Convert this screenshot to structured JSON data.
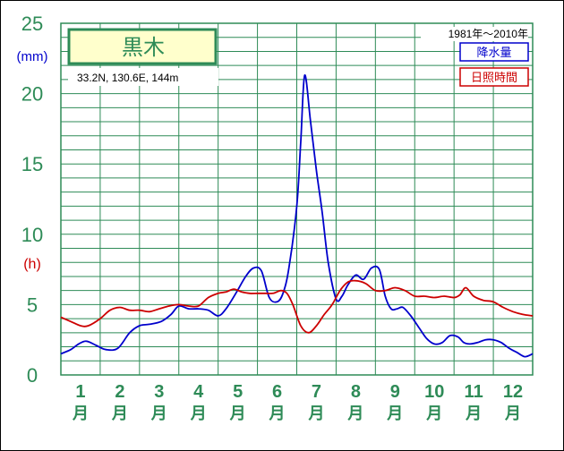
{
  "chart_data": {
    "type": "line",
    "title": "黒木",
    "location": "33.2N,  130.6E,  144m",
    "period": "1981年〜2010年",
    "y_ticks": [
      "0",
      "5",
      "10",
      "15",
      "20",
      "25"
    ],
    "y_unit_precip": "(mm)",
    "y_unit_sunshine": "(h)",
    "ylim": [
      0,
      25
    ],
    "month_suffix": "月",
    "categories": [
      "1",
      "2",
      "3",
      "4",
      "5",
      "6",
      "7",
      "8",
      "9",
      "10",
      "11",
      "12"
    ],
    "series": [
      {
        "name": "降水量",
        "color": "#0000cc",
        "x": [
          0.0,
          0.25,
          0.45,
          0.65,
          0.9,
          1.15,
          1.45,
          1.75,
          2.0,
          2.25,
          2.55,
          2.8,
          3.0,
          3.25,
          3.5,
          3.75,
          4.0,
          4.2,
          4.45,
          4.7,
          4.9,
          5.1,
          5.3,
          5.5,
          5.65,
          5.8,
          6.0,
          6.1,
          6.2,
          6.35,
          6.5,
          6.65,
          6.8,
          7.0,
          7.15,
          7.3,
          7.5,
          7.7,
          7.9,
          8.1,
          8.25,
          8.4,
          8.55,
          8.7,
          8.9,
          9.1,
          9.3,
          9.5,
          9.7,
          9.9,
          10.1,
          10.25,
          10.4,
          10.6,
          10.8,
          11.0,
          11.2,
          11.4,
          11.6,
          11.8,
          12.0
        ],
        "y": [
          1.5,
          1.8,
          2.2,
          2.4,
          2.1,
          1.8,
          1.9,
          3.0,
          3.5,
          3.6,
          3.8,
          4.3,
          4.9,
          4.7,
          4.7,
          4.6,
          4.2,
          4.7,
          5.8,
          7.0,
          7.6,
          7.4,
          5.5,
          5.2,
          5.8,
          7.6,
          12.0,
          16.5,
          21.3,
          18.0,
          14.5,
          11.5,
          8.0,
          5.4,
          5.6,
          6.4,
          7.1,
          6.8,
          7.6,
          7.5,
          5.6,
          4.7,
          4.7,
          4.8,
          4.2,
          3.4,
          2.6,
          2.2,
          2.3,
          2.8,
          2.7,
          2.3,
          2.2,
          2.3,
          2.5,
          2.5,
          2.3,
          1.9,
          1.6,
          1.3,
          1.5
        ]
      },
      {
        "name": "日照時間",
        "color": "#cc0000",
        "x": [
          0.0,
          0.25,
          0.5,
          0.7,
          1.0,
          1.25,
          1.5,
          1.75,
          2.0,
          2.25,
          2.5,
          2.75,
          3.0,
          3.25,
          3.5,
          3.75,
          4.0,
          4.2,
          4.4,
          4.6,
          4.8,
          5.0,
          5.2,
          5.4,
          5.6,
          5.75,
          5.9,
          6.1,
          6.3,
          6.5,
          6.7,
          6.9,
          7.1,
          7.3,
          7.5,
          7.75,
          8.0,
          8.25,
          8.5,
          8.75,
          9.0,
          9.25,
          9.5,
          9.75,
          10.0,
          10.15,
          10.3,
          10.5,
          10.75,
          11.0,
          11.25,
          11.5,
          11.75,
          12.0
        ],
        "y": [
          4.1,
          3.8,
          3.5,
          3.5,
          4.0,
          4.6,
          4.8,
          4.6,
          4.6,
          4.5,
          4.7,
          4.9,
          5.0,
          4.9,
          4.9,
          5.5,
          5.8,
          5.9,
          6.1,
          5.9,
          5.8,
          5.8,
          5.8,
          5.8,
          6.0,
          5.8,
          5.0,
          3.5,
          3.0,
          3.5,
          4.3,
          5.0,
          6.0,
          6.6,
          6.7,
          6.5,
          6.0,
          6.0,
          6.2,
          6.0,
          5.6,
          5.6,
          5.5,
          5.6,
          5.5,
          5.7,
          6.2,
          5.6,
          5.3,
          5.2,
          4.8,
          4.5,
          4.3,
          4.2
        ]
      }
    ]
  }
}
